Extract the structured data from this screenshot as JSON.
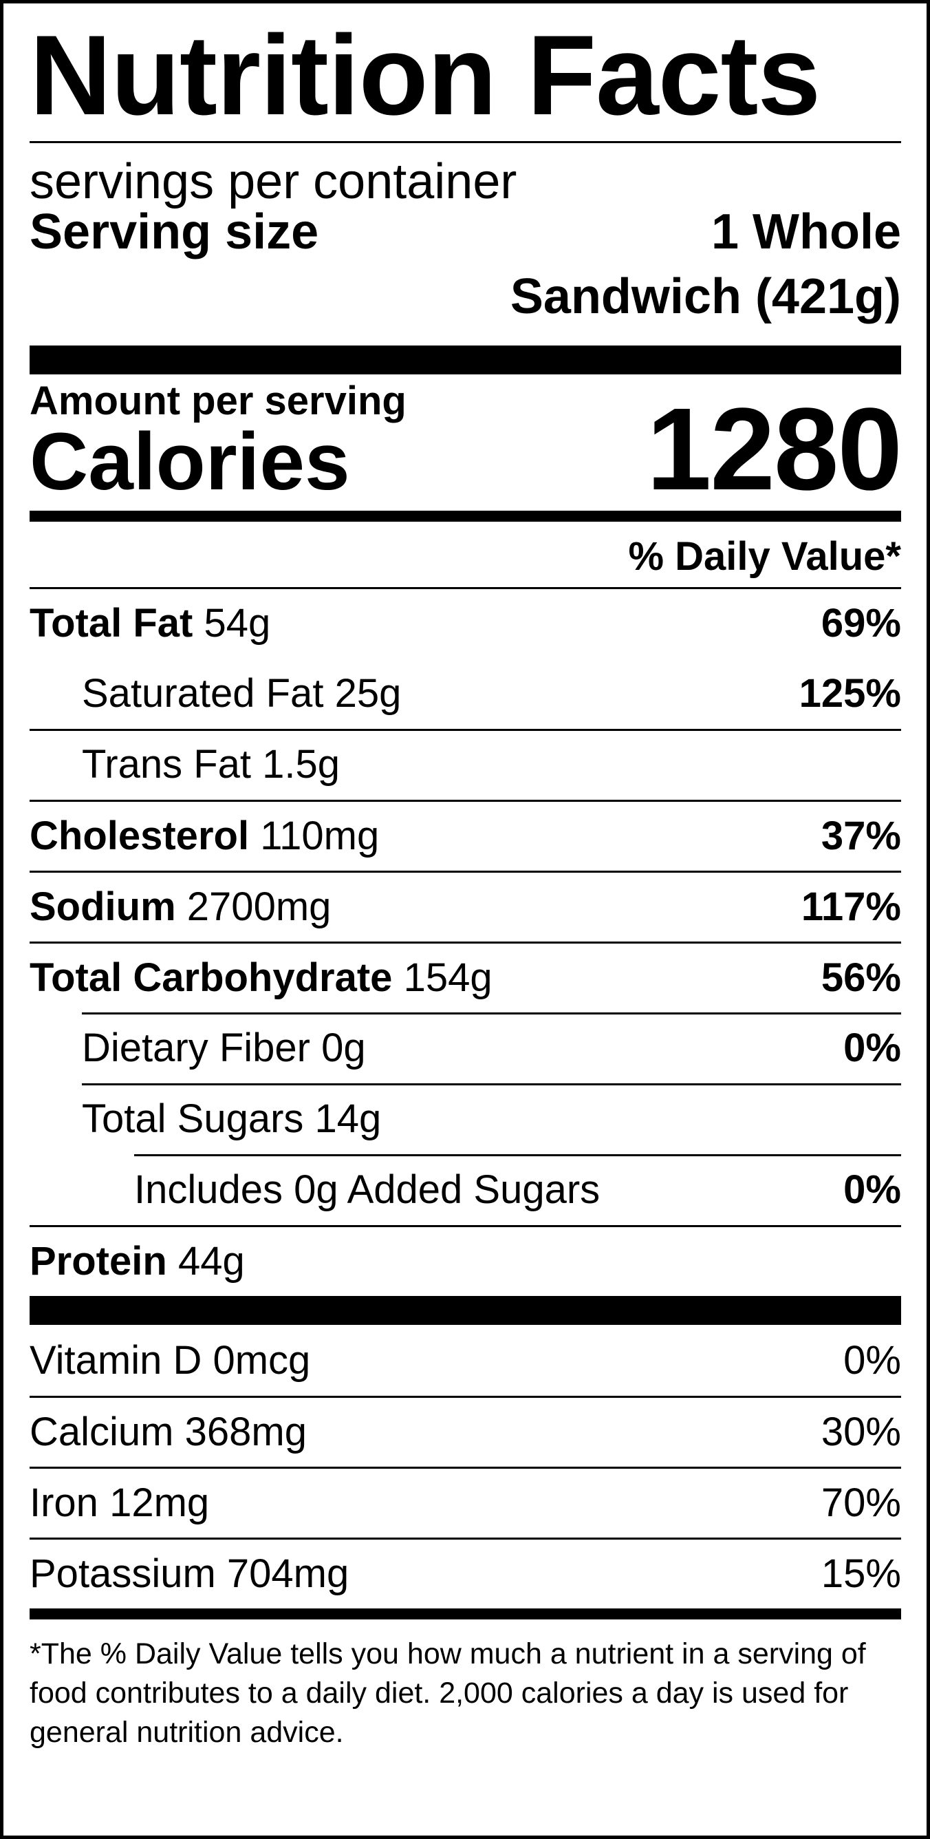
{
  "header": {
    "title": "Nutrition Facts"
  },
  "servings": {
    "per_container_label": "servings per container",
    "size_label": "Serving size",
    "size_line1": "1 Whole",
    "size_line2": "Sandwich (421g)"
  },
  "calories": {
    "amount_label": "Amount per serving",
    "label": "Calories",
    "value": "1280"
  },
  "daily_value_header": "% Daily Value*",
  "nutrients": [
    {
      "name": "Total Fat",
      "amount": "54g",
      "dv": "69%"
    },
    {
      "name": "Saturated Fat",
      "amount": "25g",
      "dv": "125%"
    },
    {
      "name": "Trans Fat",
      "amount": "1.5g",
      "dv": ""
    },
    {
      "name": "Cholesterol",
      "amount": "110mg",
      "dv": "37%"
    },
    {
      "name": "Sodium",
      "amount": "2700mg",
      "dv": "117%"
    },
    {
      "name": "Total Carbohydrate",
      "amount": "154g",
      "dv": "56%"
    },
    {
      "name": "Dietary Fiber",
      "amount": "0g",
      "dv": "0%"
    },
    {
      "name": "Total Sugars",
      "amount": "14g",
      "dv": ""
    },
    {
      "name": "Includes 0g Added Sugars",
      "amount": "",
      "dv": "0%"
    },
    {
      "name": "Protein",
      "amount": "44g",
      "dv": ""
    }
  ],
  "vitamins": [
    {
      "name": "Vitamin D",
      "amount": "0mcg",
      "dv": "0%"
    },
    {
      "name": "Calcium",
      "amount": "368mg",
      "dv": "30%"
    },
    {
      "name": "Iron",
      "amount": "12mg",
      "dv": "70%"
    },
    {
      "name": "Potassium",
      "amount": "704mg",
      "dv": "15%"
    }
  ],
  "footnote": "*The % Daily Value tells you how much a nutrient in a serving of food contributes to a daily diet. 2,000 calories a day is used for general nutrition advice."
}
